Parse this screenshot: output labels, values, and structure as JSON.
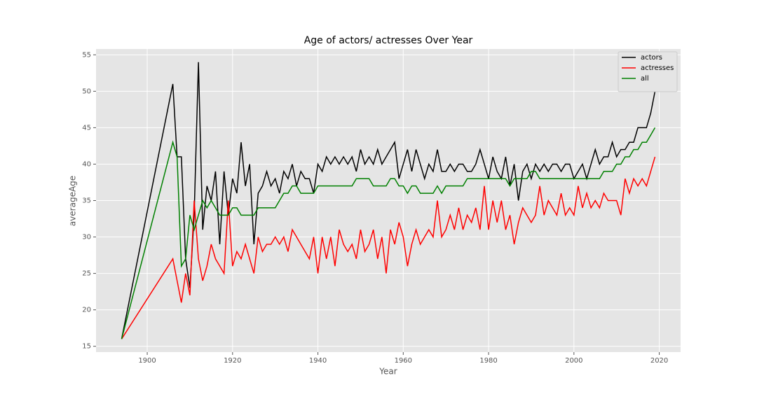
{
  "chart_data": {
    "type": "line",
    "title": "Age of actors/ actresses Over Year",
    "x_label": "Year",
    "y_label": "averageAge",
    "x": [
      1894,
      1906,
      1907,
      1908,
      1909,
      1910,
      1911,
      1912,
      1913,
      1914,
      1915,
      1916,
      1917,
      1918,
      1919,
      1920,
      1921,
      1922,
      1923,
      1924,
      1925,
      1926,
      1927,
      1928,
      1929,
      1930,
      1931,
      1932,
      1933,
      1934,
      1935,
      1936,
      1937,
      1938,
      1939,
      1940,
      1941,
      1942,
      1943,
      1944,
      1945,
      1946,
      1947,
      1948,
      1949,
      1950,
      1951,
      1952,
      1953,
      1954,
      1955,
      1956,
      1957,
      1958,
      1959,
      1960,
      1961,
      1962,
      1963,
      1964,
      1965,
      1966,
      1967,
      1968,
      1969,
      1970,
      1971,
      1972,
      1973,
      1974,
      1975,
      1976,
      1977,
      1978,
      1979,
      1980,
      1981,
      1982,
      1983,
      1984,
      1985,
      1986,
      1987,
      1988,
      1989,
      1990,
      1991,
      1992,
      1993,
      1994,
      1995,
      1996,
      1997,
      1998,
      1999,
      2000,
      2001,
      2002,
      2003,
      2004,
      2005,
      2006,
      2007,
      2008,
      2009,
      2010,
      2011,
      2012,
      2013,
      2014,
      2015,
      2016,
      2017,
      2018,
      2019
    ],
    "series": [
      {
        "name": "actors",
        "color": "#000000",
        "values": [
          16,
          51,
          41,
          41,
          27,
          23,
          33,
          54,
          31,
          37,
          35,
          39,
          29,
          39,
          33,
          38,
          36,
          43,
          37,
          40,
          29,
          36,
          37,
          39,
          37,
          38,
          36,
          39,
          38,
          40,
          37,
          39,
          38,
          38,
          36,
          40,
          39,
          41,
          40,
          41,
          40,
          41,
          40,
          41,
          39,
          42,
          40,
          41,
          40,
          42,
          40,
          41,
          42,
          43,
          38,
          40,
          42,
          39,
          42,
          40,
          38,
          40,
          39,
          42,
          39,
          39,
          40,
          39,
          40,
          40,
          39,
          39,
          40,
          42,
          40,
          38,
          41,
          39,
          38,
          41,
          37,
          40,
          35,
          39,
          40,
          38,
          40,
          39,
          40,
          39,
          40,
          40,
          39,
          40,
          40,
          38,
          39,
          40,
          38,
          40,
          42,
          40,
          41,
          41,
          43,
          41,
          42,
          42,
          43,
          43,
          45,
          45,
          45,
          47,
          50
        ]
      },
      {
        "name": "actresses",
        "color": "#ff0000",
        "values": [
          16,
          27,
          24,
          21,
          25,
          22,
          35,
          27,
          24,
          26,
          29,
          27,
          26,
          25,
          35,
          26,
          28,
          27,
          29,
          27,
          25,
          30,
          28,
          29,
          29,
          30,
          29,
          30,
          28,
          31,
          30,
          29,
          28,
          27,
          30,
          25,
          30,
          27,
          30,
          26,
          31,
          29,
          28,
          29,
          27,
          31,
          28,
          29,
          31,
          27,
          30,
          25,
          31,
          29,
          32,
          30,
          26,
          29,
          31,
          29,
          30,
          31,
          30,
          35,
          30,
          31,
          33,
          31,
          34,
          31,
          33,
          32,
          34,
          31,
          37,
          31,
          35,
          32,
          35,
          31,
          33,
          29,
          32,
          34,
          33,
          32,
          33,
          37,
          33,
          35,
          34,
          33,
          36,
          33,
          34,
          33,
          37,
          34,
          36,
          34,
          35,
          34,
          36,
          35,
          35,
          35,
          33,
          38,
          36,
          38,
          37,
          38,
          37,
          39,
          41
        ]
      },
      {
        "name": "all",
        "color": "#008000",
        "values": [
          16,
          43,
          41,
          26,
          27,
          33,
          31,
          33,
          35,
          34,
          35,
          34,
          33,
          33,
          33,
          34,
          34,
          33,
          33,
          33,
          33,
          34,
          34,
          34,
          34,
          34,
          35,
          36,
          36,
          37,
          37,
          36,
          36,
          36,
          36,
          37,
          37,
          37,
          37,
          37,
          37,
          37,
          37,
          37,
          38,
          38,
          38,
          38,
          37,
          37,
          37,
          37,
          38,
          38,
          37,
          37,
          36,
          37,
          37,
          36,
          36,
          36,
          36,
          37,
          36,
          37,
          37,
          37,
          37,
          37,
          38,
          38,
          38,
          38,
          38,
          38,
          38,
          38,
          38,
          38,
          37,
          38,
          38,
          38,
          38,
          39,
          39,
          38,
          38,
          38,
          38,
          38,
          38,
          38,
          38,
          38,
          38,
          38,
          38,
          38,
          38,
          38,
          39,
          39,
          39,
          40,
          40,
          41,
          41,
          42,
          42,
          43,
          43,
          44,
          45
        ]
      }
    ],
    "xlim": [
      1888,
      2025
    ],
    "ylim": [
      14.2,
      55.8
    ],
    "xticks": [
      1900,
      1920,
      1940,
      1960,
      1980,
      2000,
      2020
    ],
    "yticks": [
      15,
      20,
      25,
      30,
      35,
      40,
      45,
      50,
      55
    ],
    "grid": true,
    "legend": "upper right"
  }
}
